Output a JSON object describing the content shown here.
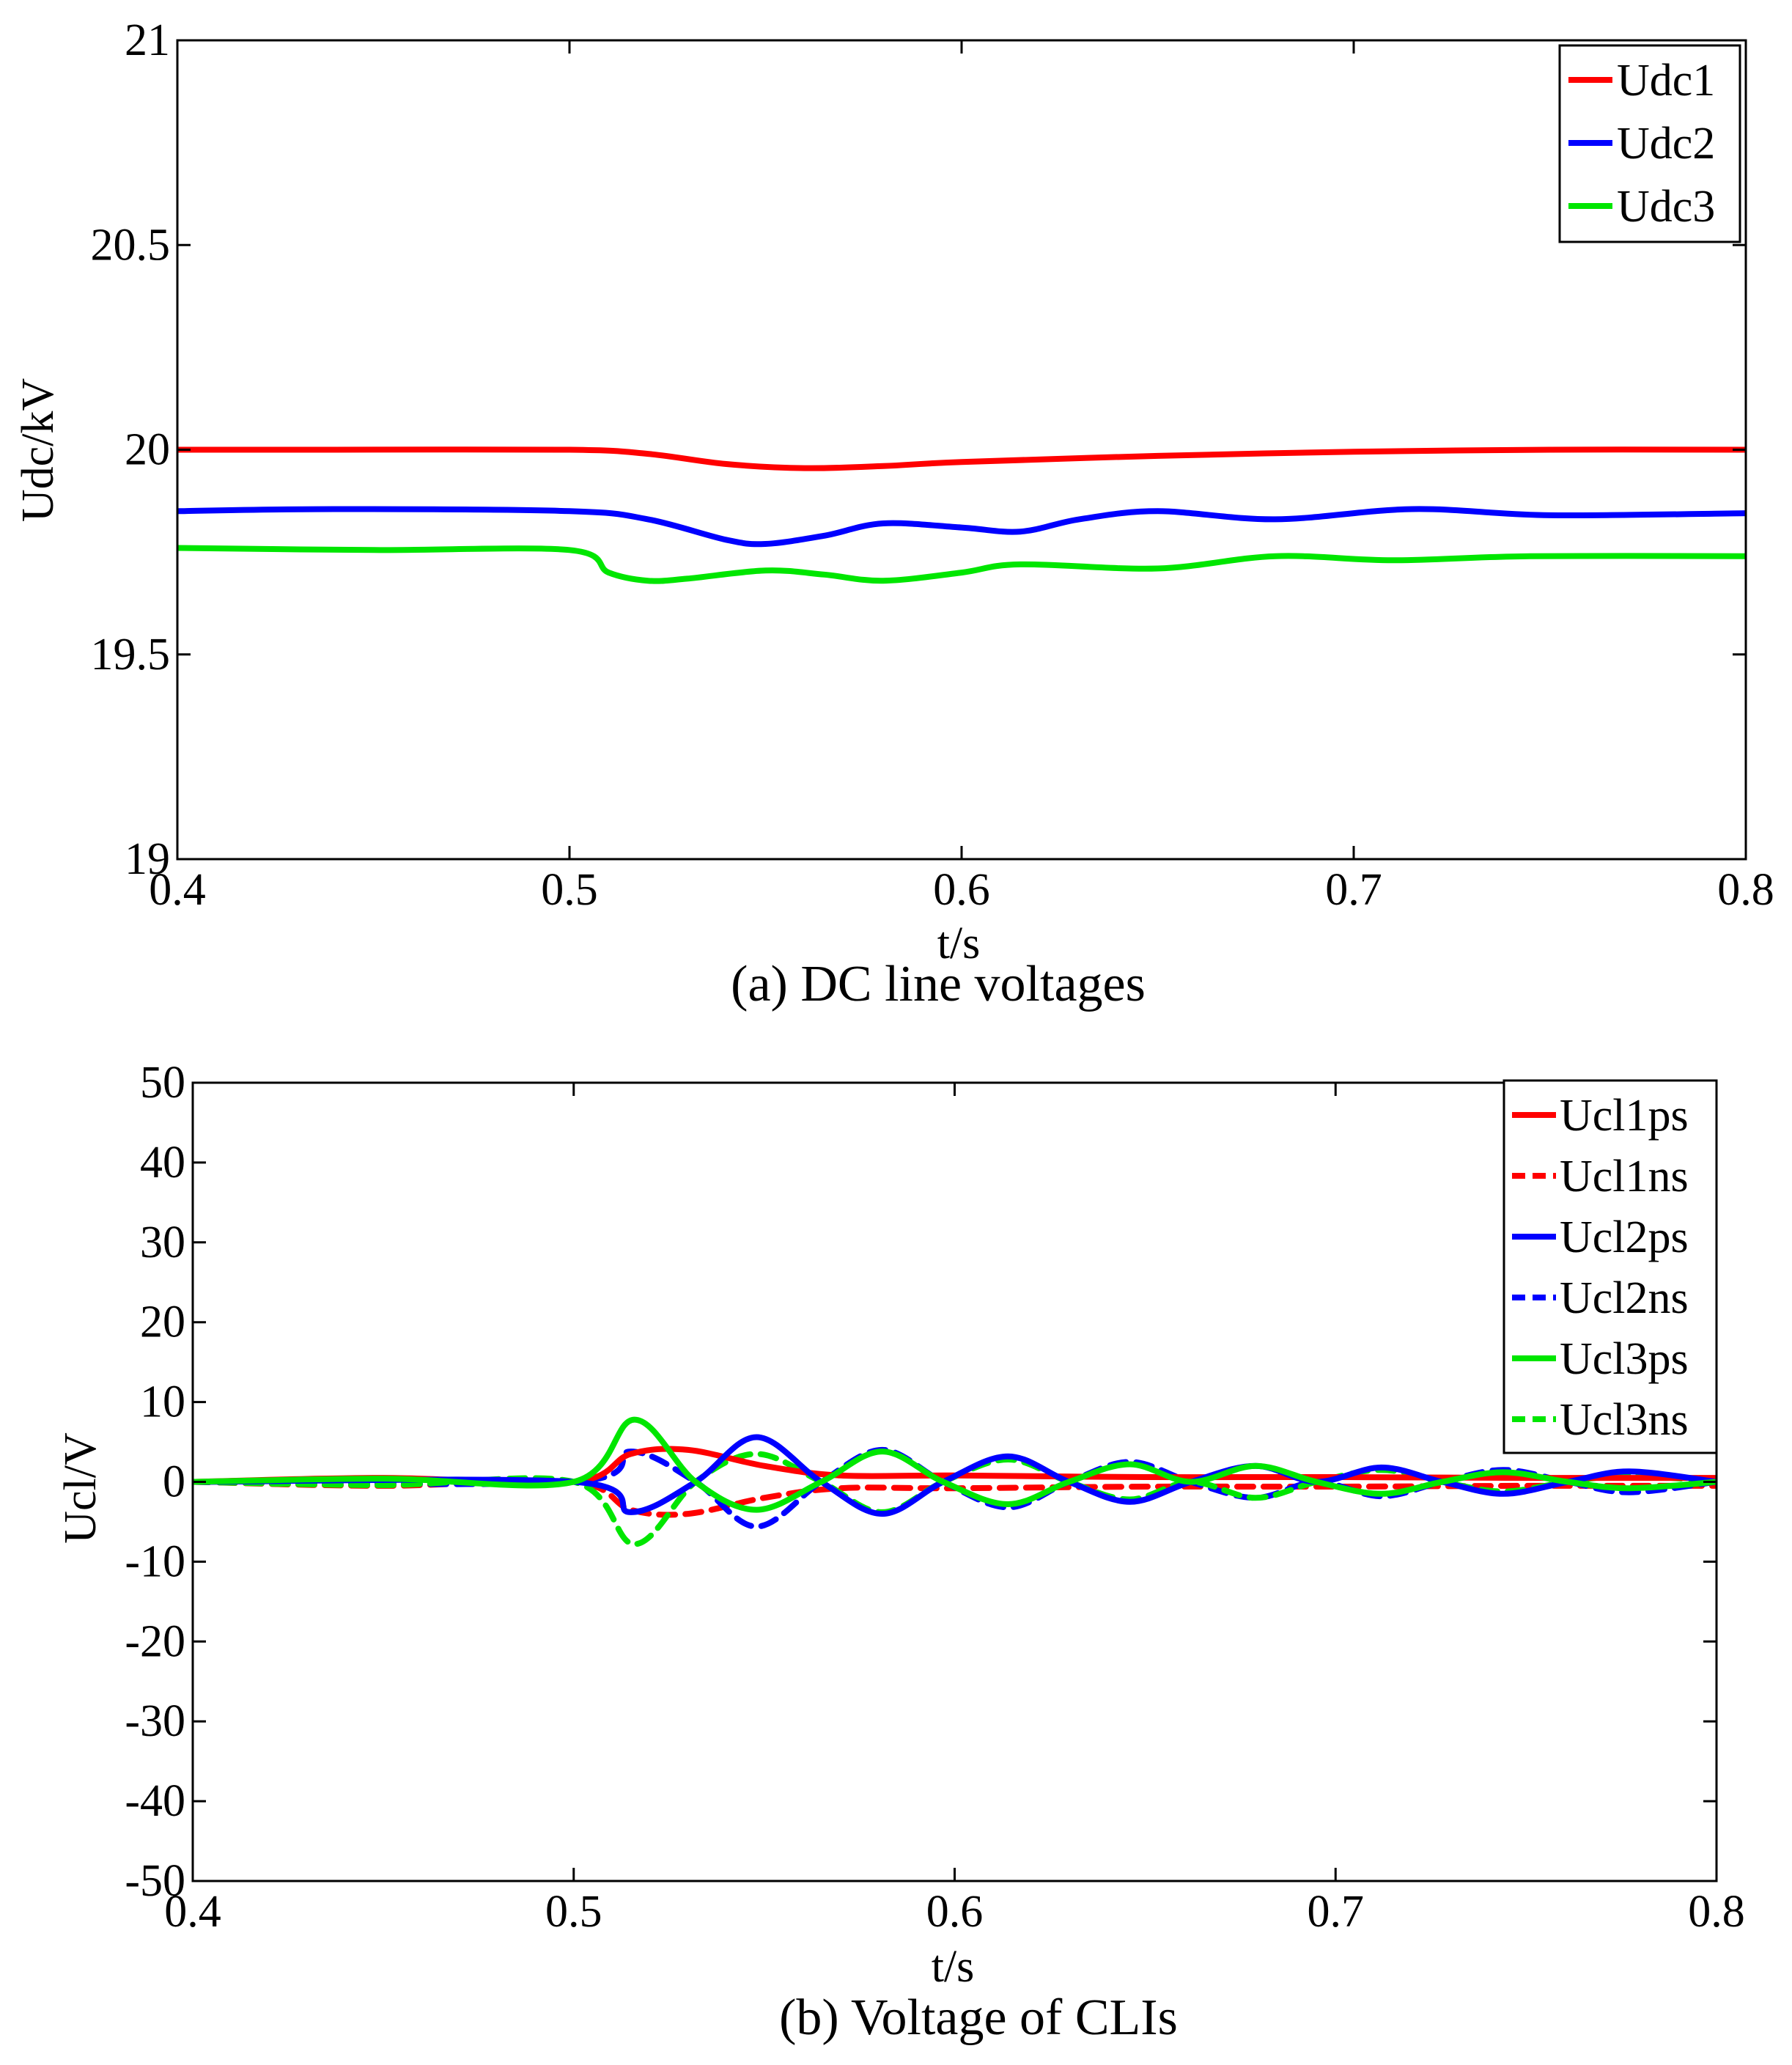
{
  "chart_data": [
    {
      "id": "a",
      "type": "line",
      "caption": "(a)  DC line voltages",
      "xlabel": "t/s",
      "ylabel": "Udc/kV",
      "xlim": [
        0.4,
        0.8
      ],
      "ylim": [
        19,
        21
      ],
      "xticks": [
        0.4,
        0.5,
        0.6,
        0.7,
        0.8
      ],
      "xtick_labels": [
        "0.4",
        "0.5",
        "0.6",
        "0.7",
        "0.8"
      ],
      "yticks": [
        19,
        19.5,
        20,
        20.5,
        21
      ],
      "ytick_labels": [
        "19",
        "19.5",
        "20",
        "20.5",
        "21"
      ],
      "legend_position": "top-right",
      "series": [
        {
          "name": "Udc1",
          "color": "#ff0000",
          "dash": "solid",
          "x": [
            0.4,
            0.44,
            0.5,
            0.52,
            0.54,
            0.56,
            0.58,
            0.6,
            0.65,
            0.7,
            0.75,
            0.8
          ],
          "y": [
            20.0,
            20.0,
            20.0,
            19.99,
            19.965,
            19.955,
            19.96,
            19.97,
            19.985,
            19.995,
            20.0,
            20.0
          ]
        },
        {
          "name": "Udc2",
          "color": "#0000ff",
          "dash": "solid",
          "x": [
            0.4,
            0.44,
            0.5,
            0.52,
            0.54,
            0.55,
            0.565,
            0.58,
            0.6,
            0.615,
            0.63,
            0.65,
            0.68,
            0.715,
            0.75,
            0.8
          ],
          "y": [
            19.85,
            19.855,
            19.85,
            19.83,
            19.78,
            19.77,
            19.79,
            19.82,
            19.81,
            19.8,
            19.83,
            19.85,
            19.83,
            19.855,
            19.84,
            19.845
          ]
        },
        {
          "name": "Udc3",
          "color": "#00e600",
          "dash": "solid",
          "x": [
            0.4,
            0.45,
            0.5,
            0.51,
            0.52,
            0.53,
            0.55,
            0.565,
            0.58,
            0.6,
            0.615,
            0.65,
            0.68,
            0.71,
            0.745,
            0.8
          ],
          "y": [
            19.76,
            19.755,
            19.755,
            19.7,
            19.68,
            19.685,
            19.705,
            19.695,
            19.68,
            19.7,
            19.72,
            19.71,
            19.74,
            19.73,
            19.74,
            19.74
          ]
        }
      ]
    },
    {
      "id": "b",
      "type": "line",
      "caption": "(b)  Voltage of CLIs",
      "xlabel": "t/s",
      "ylabel": "Ucl/V",
      "xlim": [
        0.4,
        0.8
      ],
      "ylim": [
        -50,
        50
      ],
      "xticks": [
        0.4,
        0.5,
        0.6,
        0.7,
        0.8
      ],
      "xtick_labels": [
        "0.4",
        "0.5",
        "0.6",
        "0.7",
        "0.8"
      ],
      "yticks": [
        -50,
        -40,
        -30,
        -20,
        -10,
        0,
        10,
        20,
        30,
        40,
        50
      ],
      "ytick_labels": [
        "-50",
        "-40",
        "-30",
        "-20",
        "-10",
        "0",
        "10",
        "20",
        "30",
        "40",
        "50"
      ],
      "legend_position": "top-right",
      "series": [
        {
          "name": "Ucl1ps",
          "color": "#ff0000",
          "dash": "solid",
          "x": [
            0.4,
            0.45,
            0.5,
            0.515,
            0.53,
            0.55,
            0.57,
            0.6,
            0.65,
            0.7,
            0.75,
            0.8
          ],
          "y": [
            0,
            0.5,
            0,
            3.5,
            4.0,
            2.0,
            0.8,
            0.8,
            0.6,
            0.6,
            0.5,
            0.5
          ]
        },
        {
          "name": "Ucl1ns",
          "color": "#ff0000",
          "dash": "dashed",
          "x": [
            0.4,
            0.45,
            0.5,
            0.515,
            0.53,
            0.55,
            0.57,
            0.6,
            0.65,
            0.7,
            0.75,
            0.8
          ],
          "y": [
            0,
            -0.5,
            0,
            -3.5,
            -4.0,
            -2.0,
            -0.8,
            -0.8,
            -0.6,
            -0.6,
            -0.5,
            -0.5
          ]
        },
        {
          "name": "Ucl2ps",
          "color": "#0000ff",
          "dash": "solid",
          "x": [
            0.4,
            0.5,
            0.515,
            0.532,
            0.548,
            0.565,
            0.581,
            0.597,
            0.614,
            0.63,
            0.646,
            0.662,
            0.679,
            0.695,
            0.712,
            0.728,
            0.744,
            0.761,
            0.777,
            0.8
          ],
          "y": [
            0,
            0,
            -3.8,
            0,
            5.6,
            0,
            -4.0,
            0,
            3.2,
            0,
            -2.5,
            0,
            2.0,
            0,
            1.8,
            0,
            -1.5,
            0,
            1.3,
            0
          ]
        },
        {
          "name": "Ucl2ns",
          "color": "#0000ff",
          "dash": "dashed",
          "x": [
            0.4,
            0.5,
            0.515,
            0.532,
            0.548,
            0.565,
            0.581,
            0.597,
            0.614,
            0.63,
            0.646,
            0.662,
            0.679,
            0.695,
            0.712,
            0.728,
            0.744,
            0.761,
            0.777,
            0.8
          ],
          "y": [
            0,
            0,
            3.8,
            0,
            -5.6,
            0,
            4.0,
            0,
            -3.2,
            0,
            2.5,
            0,
            -2.0,
            0,
            -1.8,
            0,
            1.5,
            0,
            -1.3,
            0
          ]
        },
        {
          "name": "Ucl3ps",
          "color": "#00e600",
          "dash": "solid",
          "x": [
            0.4,
            0.45,
            0.5,
            0.516,
            0.532,
            0.548,
            0.565,
            0.581,
            0.597,
            0.614,
            0.63,
            0.646,
            0.662,
            0.679,
            0.695,
            0.712,
            0.728,
            0.744,
            0.761,
            0.777,
            0.8
          ],
          "y": [
            0,
            0.4,
            0,
            7.8,
            0,
            -3.5,
            0,
            3.8,
            0,
            -2.8,
            0,
            2.2,
            0,
            2.0,
            0,
            -1.5,
            0,
            1.2,
            0,
            -0.8,
            0
          ]
        },
        {
          "name": "Ucl3ns",
          "color": "#00e600",
          "dash": "dashed",
          "x": [
            0.4,
            0.45,
            0.5,
            0.516,
            0.532,
            0.548,
            0.565,
            0.581,
            0.597,
            0.614,
            0.63,
            0.646,
            0.662,
            0.679,
            0.695,
            0.712,
            0.728,
            0.744,
            0.761,
            0.777,
            0.8
          ],
          "y": [
            0,
            -0.4,
            0,
            -7.8,
            0,
            3.5,
            0,
            -3.8,
            0,
            2.8,
            0,
            -2.2,
            0,
            -2.0,
            0,
            1.5,
            0,
            -1.2,
            0,
            0.8,
            0
          ]
        }
      ]
    }
  ]
}
